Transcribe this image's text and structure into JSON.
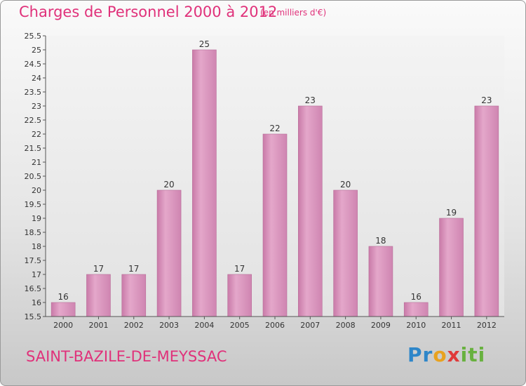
{
  "header": {
    "title": "Charges de Personnel 2000 à 2012",
    "subtitle": "(en milliers d'€)"
  },
  "footer": {
    "commune": "SAINT-BAZILE-DE-MEYSSAC",
    "logo_text": "Proxiti"
  },
  "chart_data": {
    "type": "bar",
    "title": "Charges de Personnel 2000 à 2012",
    "subtitle": "(en milliers d'€)",
    "xlabel": "",
    "ylabel": "",
    "categories": [
      "2000",
      "2001",
      "2002",
      "2003",
      "2004",
      "2005",
      "2006",
      "2007",
      "2008",
      "2009",
      "2010",
      "2011",
      "2012"
    ],
    "values": [
      16,
      17,
      17,
      20,
      25,
      17,
      22,
      23,
      20,
      18,
      16,
      19,
      23
    ],
    "ylim": [
      15.5,
      25.5
    ],
    "yticks": [
      "15.5",
      "16",
      "16.5",
      "17",
      "17.5",
      "18",
      "18.5",
      "19",
      "19.5",
      "20",
      "20.5",
      "21",
      "21.5",
      "22",
      "22.5",
      "23",
      "23.5",
      "24",
      "24.5",
      "25",
      "25.5"
    ],
    "grid": false,
    "bar_color": "#d98fbb"
  }
}
